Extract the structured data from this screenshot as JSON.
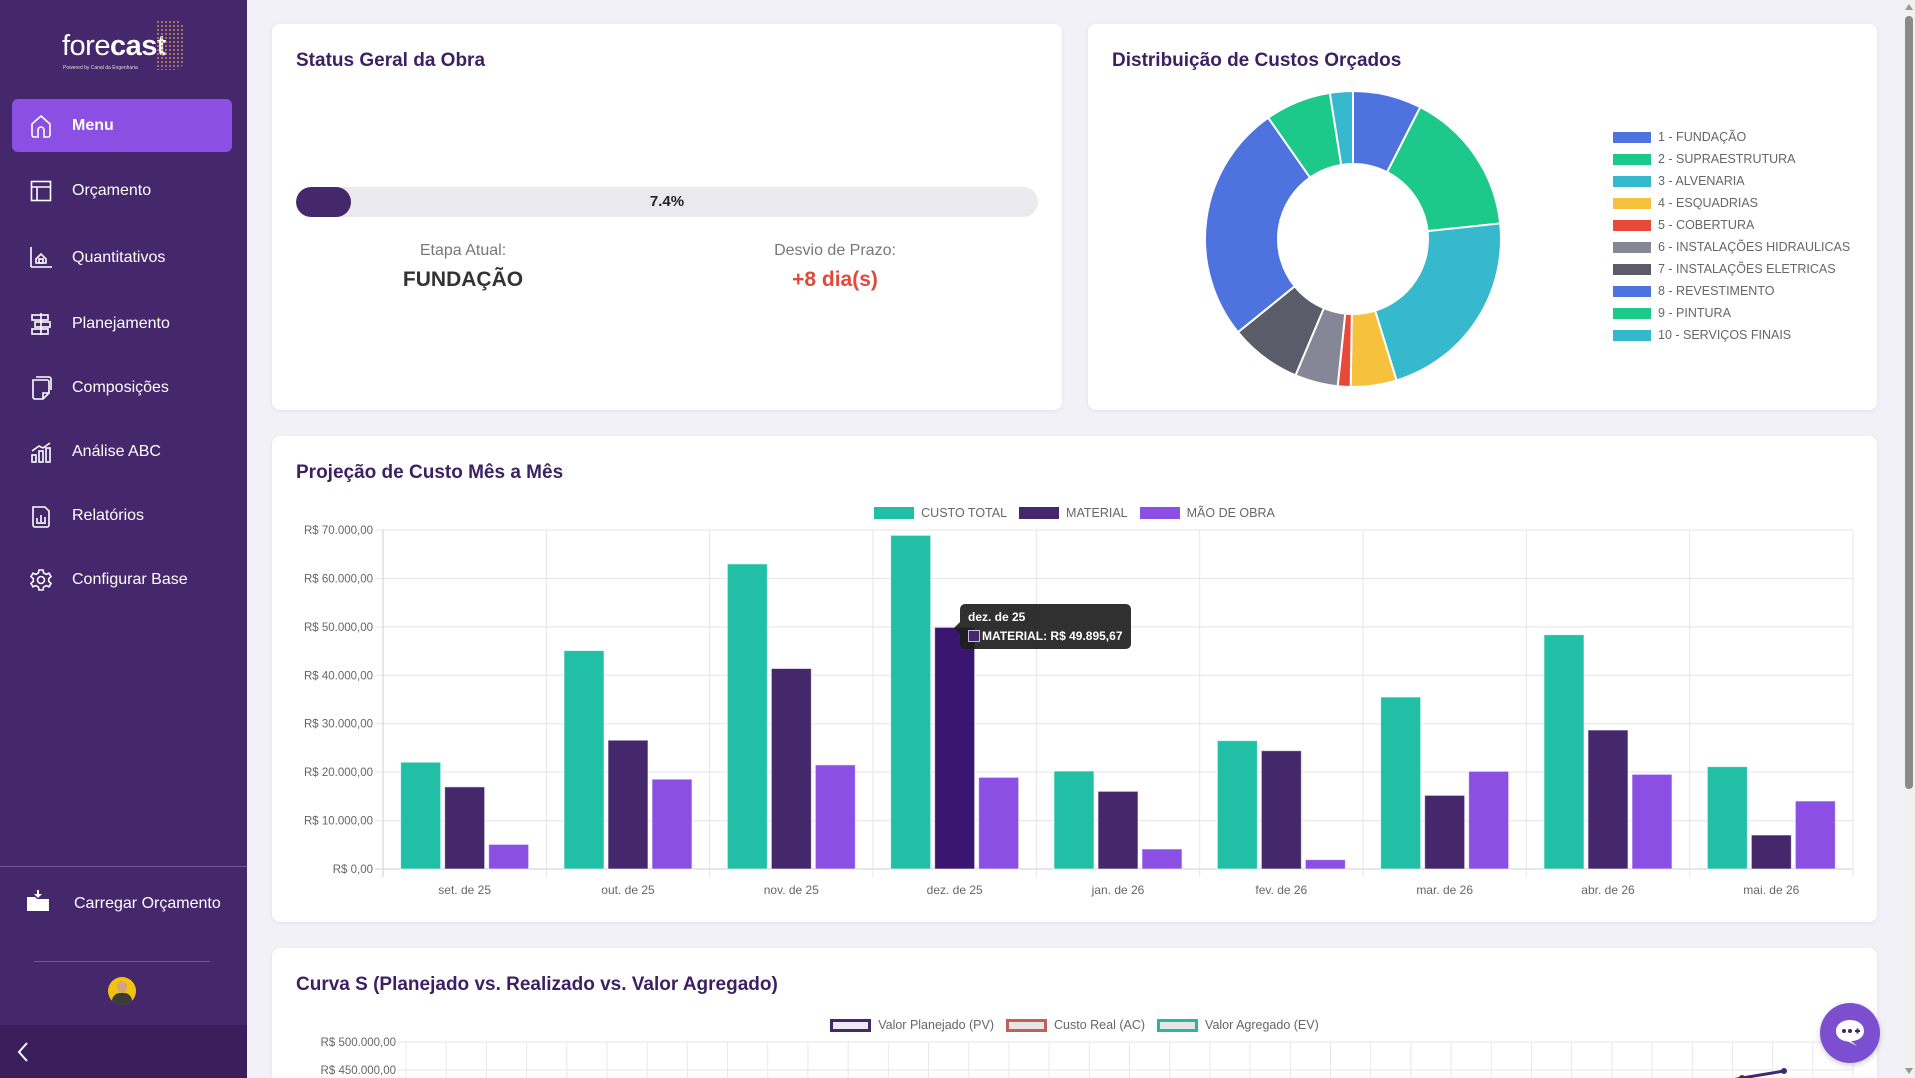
{
  "app": {
    "brand_light": "fore",
    "brand_bold": "cast",
    "brand_sub": "Powered by Canal da Engenharia"
  },
  "sidebar": {
    "items": [
      {
        "label": "Menu",
        "icon": "home-icon",
        "active": true
      },
      {
        "label": "Orçamento",
        "icon": "table-icon",
        "active": false
      },
      {
        "label": "Quantitativos",
        "icon": "house-measure-icon",
        "active": false
      },
      {
        "label": "Planejamento",
        "icon": "signpost-icon",
        "active": false
      },
      {
        "label": "Composições",
        "icon": "document-icon",
        "active": false
      },
      {
        "label": "Análise ABC",
        "icon": "bar-chart-icon",
        "active": false
      },
      {
        "label": "Relatórios",
        "icon": "report-icon",
        "active": false
      },
      {
        "label": "Configurar Base",
        "icon": "gear-icon",
        "active": false
      }
    ],
    "load_label": "Carregar Orçamento",
    "collapse_icon": "chevron-left-icon"
  },
  "status": {
    "title": "Status Geral da Obra",
    "progress_percent": 7.4,
    "progress_label": "7.4%",
    "stage_label": "Etapa Atual:",
    "stage_value": "FUNDAÇÃO",
    "delay_label": "Desvio de Prazo:",
    "delay_value": "+8 dia(s)"
  },
  "distribution": {
    "title": "Distribuição de Custos Orçados",
    "chart_data": {
      "type": "pie",
      "variant": "doughnut",
      "title": "Distribuição de Custos Orçados",
      "legend_position": "right",
      "categories": [
        "1 - FUNDAÇÃO",
        "2 - SUPRAESTRUTURA",
        "3 - ALVENARIA",
        "4 - ESQUADRIAS",
        "5 - COBERTURA",
        "6 - INSTALAÇÕES HIDRAULICAS",
        "7 - INSTALAÇÕES ELETRICAS",
        "8 - REVESTIMENTO",
        "9 - PINTURA",
        "10 - SERVIÇOS FINAIS"
      ],
      "values": [
        7.5,
        15.8,
        21.9,
        5.0,
        1.4,
        4.7,
        7.8,
        26.1,
        7.2,
        2.5
      ],
      "unit": "percent (estimated)",
      "colors": [
        "#4e73df",
        "#1cc88a",
        "#36b9cc",
        "#f6c23e",
        "#e74a3b",
        "#858796",
        "#5a5c69",
        "#4e73df",
        "#1cc88a",
        "#36b9cc"
      ]
    }
  },
  "projection": {
    "title": "Projeção de Custo Mês a Mês",
    "chart_data": {
      "type": "bar",
      "title": "Projeção de Custo Mês a Mês",
      "xlabel": "",
      "ylabel": "",
      "ylim": [
        0,
        70000
      ],
      "yticks": [
        0,
        10000,
        20000,
        30000,
        40000,
        50000,
        60000,
        70000
      ],
      "ytick_labels": [
        "R$ 0,00",
        "R$ 10.000,00",
        "R$ 20.000,00",
        "R$ 30.000,00",
        "R$ 40.000,00",
        "R$ 50.000,00",
        "R$ 60.000,00",
        "R$ 70.000,00"
      ],
      "grid": true,
      "legend_position": "top",
      "categories": [
        "set. de 25",
        "out. de 25",
        "nov. de 25",
        "dez. de 25",
        "jan. de 26",
        "fev. de 26",
        "mar. de 26",
        "abr. de 26",
        "mai. de 26"
      ],
      "series": [
        {
          "name": "CUSTO TOTAL",
          "color": "#20bfa6",
          "values": [
            22050,
            45100,
            63000,
            68900,
            20230,
            26500,
            35510,
            48380,
            21130
          ]
        },
        {
          "name": "MATERIAL",
          "color": "#45276b",
          "values": [
            16960,
            26600,
            41400,
            49895.67,
            16040,
            24430,
            15210,
            28700,
            7020
          ]
        },
        {
          "name": "MÃO DE OBRA",
          "color": "#8b4fe3",
          "values": [
            5080,
            18550,
            21500,
            18930,
            4130,
            1930,
            20170,
            19550,
            14040
          ]
        }
      ]
    },
    "tooltip": {
      "title": "dez. de 25",
      "label": "MATERIAL: R$ 49.895,67",
      "category_index": 3,
      "series_index": 1
    }
  },
  "scurve": {
    "title": "Curva S (Planejado vs. Realizado vs. Valor Agregado)",
    "chart_data": {
      "type": "line",
      "title": "Curva S (Planejado vs. Realizado vs. Valor Agregado)",
      "legend_position": "top",
      "grid": true,
      "ytick_labels_visible": [
        "R$ 500.000,00",
        "R$ 450.000,00"
      ],
      "yticks_visible": [
        500000,
        450000
      ],
      "series": [
        {
          "name": "Valor Planejado (PV)",
          "color": "#45276b",
          "fill": "#ece8f4"
        },
        {
          "name": "Custo Real (AC)",
          "color": "#c0605a",
          "fill": "#e6e6e6"
        },
        {
          "name": "Valor Agregado (EV)",
          "color": "#2ab5a0",
          "fill": "#e6e6e6"
        }
      ],
      "note": "Only the top of the chart is visible; PV line rising near the right edge"
    }
  },
  "chat": {
    "icon": "chat-bubble-icon"
  }
}
